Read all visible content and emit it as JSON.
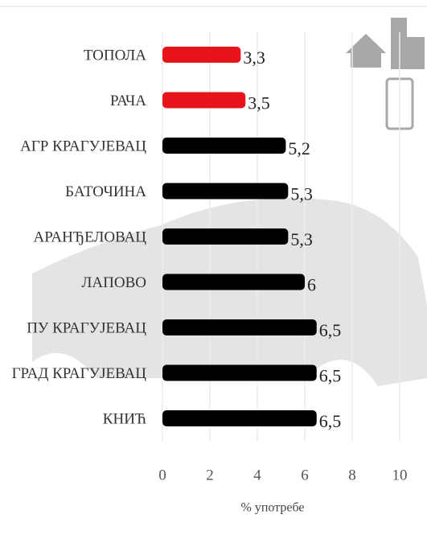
{
  "chart_data": {
    "type": "bar",
    "orientation": "horizontal",
    "categories": [
      "ТОПОЛА",
      "РАЧА",
      "АГР КРАГУЈЕВАЦ",
      "БАТОЧИНА",
      "АРАНЂЕЛОВАЦ",
      "ЛАПОВО",
      "ПУ КРАГУЈЕВАЦ",
      "ГРАД КРАГУЈЕВАЦ",
      "КНИЋ"
    ],
    "values": [
      3.3,
      3.5,
      5.2,
      5.3,
      5.3,
      6,
      6.5,
      6.5,
      6.5
    ],
    "value_labels": [
      "3,3",
      "3,5",
      "5,2",
      "5,3",
      "5,3",
      "6",
      "6,5",
      "6,5",
      "6,5"
    ],
    "colors": [
      "#e8141b",
      "#e8141b",
      "#000000",
      "#000000",
      "#000000",
      "#000000",
      "#000000",
      "#000000",
      "#000000"
    ],
    "xlim": [
      0,
      10
    ],
    "xticks": [
      0,
      2,
      4,
      6,
      8,
      10
    ],
    "x_label": "% употребе",
    "grid": true
  }
}
